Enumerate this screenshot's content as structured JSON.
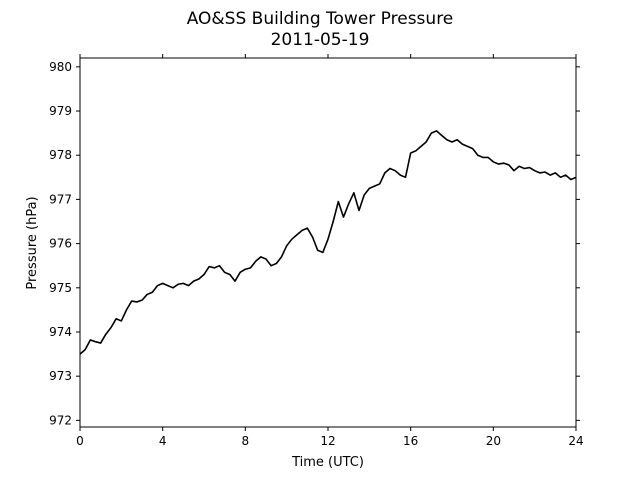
{
  "chart_data": {
    "type": "line",
    "title": "AO&SS Building Tower Pressure",
    "subtitle": "2011-05-19",
    "xlabel": "Time (UTC)",
    "ylabel": "Pressure (hPa)",
    "xlim": [
      0,
      24
    ],
    "ylim": [
      971.85,
      980.2
    ],
    "xticks": [
      0,
      4,
      8,
      12,
      16,
      20,
      24
    ],
    "yticks": [
      972,
      973,
      974,
      975,
      976,
      977,
      978,
      979,
      980
    ],
    "grid": false,
    "legend": "none",
    "line_color": "#000000",
    "series": [
      {
        "x": [
          0.0,
          0.25,
          0.5,
          0.75,
          1.0,
          1.25,
          1.5,
          1.75,
          2.0,
          2.25,
          2.5,
          2.75,
          3.0,
          3.25,
          3.5,
          3.75,
          4.0,
          4.25,
          4.5,
          4.75,
          5.0,
          5.25,
          5.5,
          5.75,
          6.0,
          6.25,
          6.5,
          6.75,
          7.0,
          7.25,
          7.5,
          7.75,
          8.0,
          8.25,
          8.5,
          8.75,
          9.0,
          9.25,
          9.5,
          9.75,
          10.0,
          10.25,
          10.5,
          10.75,
          11.0,
          11.25,
          11.5,
          11.75,
          12.0,
          12.25,
          12.5,
          12.75,
          13.0,
          13.25,
          13.5,
          13.75,
          14.0,
          14.25,
          14.5,
          14.75,
          15.0,
          15.25,
          15.5,
          15.75,
          16.0,
          16.25,
          16.5,
          16.75,
          17.0,
          17.25,
          17.5,
          17.75,
          18.0,
          18.25,
          18.5,
          18.75,
          19.0,
          19.25,
          19.5,
          19.75,
          20.0,
          20.25,
          20.5,
          20.75,
          21.0,
          21.25,
          21.5,
          21.75,
          22.0,
          22.25,
          22.5,
          22.75,
          23.0,
          23.25,
          23.5,
          23.75,
          24.0
        ],
        "y": [
          973.5,
          973.6,
          973.82,
          973.78,
          973.75,
          973.95,
          974.1,
          974.3,
          974.25,
          974.5,
          974.7,
          974.68,
          974.72,
          974.85,
          974.9,
          975.05,
          975.1,
          975.05,
          975.0,
          975.08,
          975.1,
          975.05,
          975.15,
          975.2,
          975.3,
          975.48,
          975.45,
          975.5,
          975.35,
          975.3,
          975.15,
          975.35,
          975.42,
          975.45,
          975.6,
          975.7,
          975.65,
          975.5,
          975.55,
          975.7,
          975.95,
          976.1,
          976.2,
          976.3,
          976.35,
          976.15,
          975.85,
          975.8,
          976.1,
          976.5,
          976.95,
          976.6,
          976.9,
          977.15,
          976.75,
          977.1,
          977.25,
          977.3,
          977.35,
          977.6,
          977.7,
          977.65,
          977.55,
          977.5,
          978.05,
          978.1,
          978.2,
          978.3,
          978.5,
          978.55,
          978.45,
          978.35,
          978.3,
          978.35,
          978.25,
          978.2,
          978.15,
          978.0,
          977.95,
          977.95,
          977.85,
          977.8,
          977.82,
          977.78,
          977.65,
          977.75,
          977.7,
          977.72,
          977.65,
          977.6,
          977.62,
          977.55,
          977.6,
          977.5,
          977.55,
          977.45,
          977.5
        ]
      }
    ]
  }
}
